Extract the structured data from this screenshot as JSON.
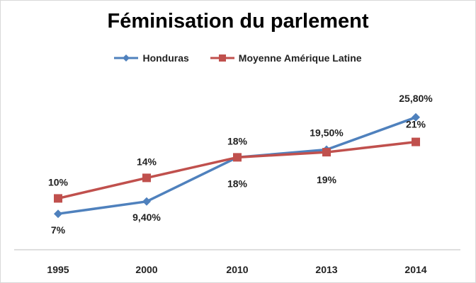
{
  "chart_data": {
    "type": "line",
    "title": "Féminisation du parlement",
    "xlabel": "",
    "ylabel": "",
    "categories": [
      "1995",
      "2000",
      "2010",
      "2013",
      "2014"
    ],
    "ylim": [
      0,
      35
    ],
    "grid": false,
    "legend": "top",
    "series": [
      {
        "name": "Honduras",
        "color": "#4f81bd",
        "marker": "diamond",
        "values": [
          7,
          9.4,
          18,
          19.5,
          25.8
        ],
        "labels": [
          "7%",
          "9,40%",
          "18%",
          "19,50%",
          "25,80%"
        ]
      },
      {
        "name": "Moyenne Amérique Latine",
        "color": "#c0504d",
        "marker": "square",
        "values": [
          10,
          14,
          18,
          19,
          21
        ],
        "labels": [
          "10%",
          "14%",
          "18%",
          "19%",
          "21%"
        ]
      }
    ]
  }
}
